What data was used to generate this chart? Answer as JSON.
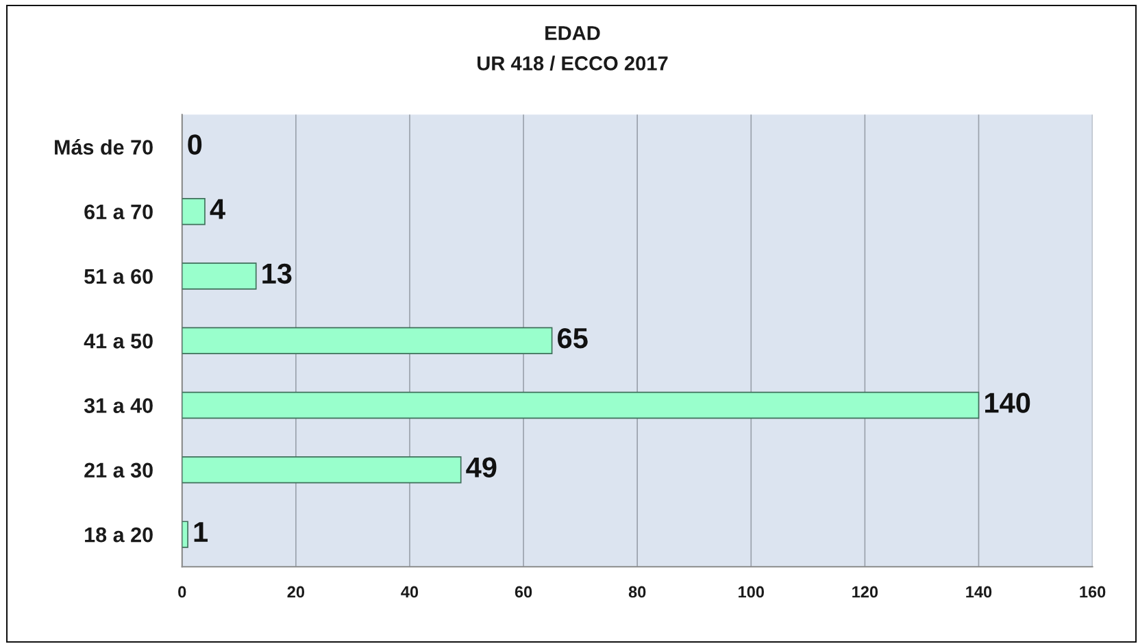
{
  "chart_data": {
    "type": "bar",
    "orientation": "horizontal",
    "title": "EDAD",
    "subtitle": "UR 418 / ECCO 2017",
    "categories": [
      "Más de 70",
      "61 a 70",
      "51 a 60",
      "41 a 50",
      "31 a 40",
      "21 a 30",
      "18 a 20"
    ],
    "values": [
      0,
      4,
      13,
      65,
      140,
      49,
      1
    ],
    "color": "#99ffcc",
    "xlim": [
      0,
      160
    ],
    "xticks": [
      0,
      20,
      40,
      60,
      80,
      100,
      120,
      140,
      160
    ],
    "grid": "x",
    "data_labels": true
  }
}
